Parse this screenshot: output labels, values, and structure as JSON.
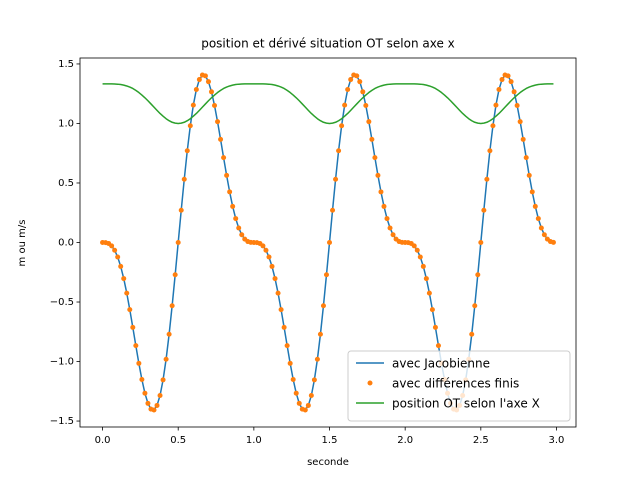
{
  "chart_data": {
    "type": "line",
    "title": "position et dérivé situation OT selon axe x",
    "xlabel": "seconde",
    "ylabel": "m ou m/s",
    "x": [
      0,
      0.02,
      0.04,
      0.06,
      0.08,
      0.1,
      0.12,
      0.14,
      0.16,
      0.18,
      0.2,
      0.22,
      0.24,
      0.26,
      0.28,
      0.3,
      0.32,
      0.34,
      0.36,
      0.38,
      0.4,
      0.42,
      0.44,
      0.46,
      0.48,
      0.5,
      0.52,
      0.54,
      0.56,
      0.58,
      0.6,
      0.62,
      0.64,
      0.66,
      0.68,
      0.7,
      0.72,
      0.74,
      0.76,
      0.78,
      0.8,
      0.82,
      0.84,
      0.86,
      0.88,
      0.9,
      0.92,
      0.94,
      0.96,
      0.98,
      1,
      1.02,
      1.04,
      1.06,
      1.08,
      1.1,
      1.12,
      1.14,
      1.16,
      1.18,
      1.2,
      1.22,
      1.24,
      1.26,
      1.28,
      1.3,
      1.32,
      1.34,
      1.36,
      1.38,
      1.4,
      1.42,
      1.44,
      1.46,
      1.48,
      1.5,
      1.52,
      1.54,
      1.56,
      1.58,
      1.6,
      1.62,
      1.64,
      1.66,
      1.68,
      1.7,
      1.72,
      1.74,
      1.76,
      1.78,
      1.8,
      1.82,
      1.84,
      1.86,
      1.88,
      1.9,
      1.92,
      1.94,
      1.96,
      1.98,
      2,
      2.02,
      2.04,
      2.06,
      2.08,
      2.1,
      2.12,
      2.14,
      2.16,
      2.18,
      2.2,
      2.22,
      2.24,
      2.26,
      2.28,
      2.3,
      2.32,
      2.34,
      2.36,
      2.38,
      2.4,
      2.42,
      2.44,
      2.46,
      2.48,
      2.5,
      2.52,
      2.54,
      2.56,
      2.58,
      2.6,
      2.62,
      2.64,
      2.66,
      2.68,
      2.7,
      2.72,
      2.74,
      2.76,
      2.78,
      2.8,
      2.82,
      2.84,
      2.86,
      2.88,
      2.9,
      2.92,
      2.94,
      2.96,
      2.98
    ],
    "series": [
      {
        "name": "avec Jacobienne",
        "color": "#1f77b4",
        "kind": "line",
        "values": [
          0,
          -0.001,
          -0.008,
          -0.028,
          -0.065,
          -0.122,
          -0.201,
          -0.303,
          -0.425,
          -0.564,
          -0.713,
          -0.866,
          -1.015,
          -1.151,
          -1.266,
          -1.351,
          -1.4,
          -1.407,
          -1.369,
          -1.285,
          -1.154,
          -0.981,
          -0.771,
          -0.531,
          -0.271,
          0,
          0.271,
          0.531,
          0.771,
          0.981,
          1.154,
          1.285,
          1.369,
          1.407,
          1.4,
          1.351,
          1.266,
          1.151,
          1.015,
          0.866,
          0.713,
          0.564,
          0.425,
          0.303,
          0.201,
          0.122,
          0.065,
          0.028,
          0.008,
          0.001,
          0,
          -0.001,
          -0.008,
          -0.028,
          -0.065,
          -0.122,
          -0.201,
          -0.303,
          -0.425,
          -0.564,
          -0.713,
          -0.866,
          -1.015,
          -1.151,
          -1.266,
          -1.351,
          -1.4,
          -1.407,
          -1.369,
          -1.285,
          -1.154,
          -0.981,
          -0.771,
          -0.531,
          -0.271,
          0,
          0.271,
          0.531,
          0.771,
          0.981,
          1.154,
          1.285,
          1.369,
          1.407,
          1.4,
          1.351,
          1.266,
          1.151,
          1.015,
          0.866,
          0.713,
          0.564,
          0.425,
          0.303,
          0.201,
          0.122,
          0.065,
          0.028,
          0.008,
          0.001,
          0,
          -0.001,
          -0.008,
          -0.028,
          -0.065,
          -0.122,
          -0.201,
          -0.303,
          -0.425,
          -0.564,
          -0.713,
          -0.866,
          -1.015,
          -1.151,
          -1.266,
          -1.351,
          -1.4,
          -1.407,
          -1.369,
          -1.285,
          -1.154,
          -0.981,
          -0.771,
          -0.531,
          -0.271,
          0,
          0.271,
          0.531,
          0.771,
          0.981,
          1.154,
          1.285,
          1.369,
          1.407,
          1.4,
          1.351,
          1.266,
          1.151,
          1.015,
          0.866,
          0.713,
          0.564,
          0.425,
          0.303,
          0.201,
          0.122,
          0.065,
          0.028,
          0.008,
          0.001
        ]
      },
      {
        "name": "avec différences finis",
        "color": "#ff7f0e",
        "kind": "scatter",
        "values": [
          0,
          -0.001,
          -0.008,
          -0.028,
          -0.065,
          -0.122,
          -0.201,
          -0.303,
          -0.425,
          -0.564,
          -0.713,
          -0.866,
          -1.015,
          -1.151,
          -1.266,
          -1.351,
          -1.4,
          -1.407,
          -1.369,
          -1.285,
          -1.154,
          -0.981,
          -0.771,
          -0.531,
          -0.271,
          0,
          0.271,
          0.531,
          0.771,
          0.981,
          1.154,
          1.285,
          1.369,
          1.407,
          1.4,
          1.351,
          1.266,
          1.151,
          1.015,
          0.866,
          0.713,
          0.564,
          0.425,
          0.303,
          0.201,
          0.122,
          0.065,
          0.028,
          0.008,
          0.001,
          0,
          -0.001,
          -0.008,
          -0.028,
          -0.065,
          -0.122,
          -0.201,
          -0.303,
          -0.425,
          -0.564,
          -0.713,
          -0.866,
          -1.015,
          -1.151,
          -1.266,
          -1.351,
          -1.4,
          -1.407,
          -1.369,
          -1.285,
          -1.154,
          -0.981,
          -0.771,
          -0.531,
          -0.271,
          0,
          0.271,
          0.531,
          0.771,
          0.981,
          1.154,
          1.285,
          1.369,
          1.407,
          1.4,
          1.351,
          1.266,
          1.151,
          1.015,
          0.866,
          0.713,
          0.564,
          0.425,
          0.303,
          0.201,
          0.122,
          0.065,
          0.028,
          0.008,
          0.001,
          0,
          -0.001,
          -0.008,
          -0.028,
          -0.065,
          -0.122,
          -0.201,
          -0.303,
          -0.425,
          -0.564,
          -0.713,
          -0.866,
          -1.015,
          -1.151,
          -1.266,
          -1.351,
          -1.4,
          -1.407,
          -1.369,
          -1.285,
          -1.154,
          -0.981,
          -0.771,
          -0.531,
          -0.271,
          0,
          0.271,
          0.531,
          0.771,
          0.981,
          1.154,
          1.285,
          1.369,
          1.407,
          1.4,
          1.351,
          1.266,
          1.151,
          1.015,
          0.866,
          0.713,
          0.564,
          0.425,
          0.303,
          0.201,
          0.122,
          0.065,
          0.028,
          0.008,
          0.001
        ]
      },
      {
        "name": "position OT selon l'axe X",
        "color": "#2ca02c",
        "kind": "line",
        "values": [
          1.333,
          1.333,
          1.333,
          1.333,
          1.332,
          1.33,
          1.327,
          1.322,
          1.315,
          1.306,
          1.294,
          1.278,
          1.26,
          1.239,
          1.216,
          1.191,
          1.164,
          1.137,
          1.11,
          1.084,
          1.061,
          1.04,
          1.023,
          1.01,
          1.003,
          1,
          1.003,
          1.01,
          1.023,
          1.04,
          1.061,
          1.084,
          1.11,
          1.137,
          1.164,
          1.191,
          1.216,
          1.239,
          1.26,
          1.278,
          1.294,
          1.306,
          1.315,
          1.322,
          1.327,
          1.33,
          1.332,
          1.333,
          1.333,
          1.333,
          1.333,
          1.333,
          1.333,
          1.333,
          1.332,
          1.33,
          1.327,
          1.322,
          1.315,
          1.306,
          1.294,
          1.278,
          1.26,
          1.239,
          1.216,
          1.191,
          1.164,
          1.137,
          1.11,
          1.084,
          1.061,
          1.04,
          1.023,
          1.01,
          1.003,
          1,
          1.003,
          1.01,
          1.023,
          1.04,
          1.061,
          1.084,
          1.11,
          1.137,
          1.164,
          1.191,
          1.216,
          1.239,
          1.26,
          1.278,
          1.294,
          1.306,
          1.315,
          1.322,
          1.327,
          1.33,
          1.332,
          1.333,
          1.333,
          1.333,
          1.333,
          1.333,
          1.333,
          1.333,
          1.332,
          1.33,
          1.327,
          1.322,
          1.315,
          1.306,
          1.294,
          1.278,
          1.26,
          1.239,
          1.216,
          1.191,
          1.164,
          1.137,
          1.11,
          1.084,
          1.061,
          1.04,
          1.023,
          1.01,
          1.003,
          1,
          1.003,
          1.01,
          1.023,
          1.04,
          1.061,
          1.084,
          1.11,
          1.137,
          1.164,
          1.191,
          1.216,
          1.239,
          1.26,
          1.278,
          1.294,
          1.306,
          1.315,
          1.322,
          1.327,
          1.33,
          1.332,
          1.333,
          1.333,
          1.333
        ]
      }
    ],
    "xlim": [
      -0.149,
      3.129
    ],
    "ylim": [
      -1.55,
      1.55
    ],
    "xticks": [
      {
        "value": 0,
        "label": "0.0"
      },
      {
        "value": 0.5,
        "label": "0.5"
      },
      {
        "value": 1,
        "label": "1.0"
      },
      {
        "value": 1.5,
        "label": "1.5"
      },
      {
        "value": 2,
        "label": "2.0"
      },
      {
        "value": 2.5,
        "label": "2.5"
      },
      {
        "value": 3,
        "label": "3.0"
      }
    ],
    "yticks": [
      {
        "value": -1.5,
        "label": "−1.5"
      },
      {
        "value": -1,
        "label": "−1.0"
      },
      {
        "value": -0.5,
        "label": "−0.5"
      },
      {
        "value": 0,
        "label": "0.0"
      },
      {
        "value": 0.5,
        "label": "0.5"
      },
      {
        "value": 1,
        "label": "1.0"
      },
      {
        "value": 1.5,
        "label": "1.5"
      }
    ],
    "legend": "lower right",
    "grid": false
  }
}
